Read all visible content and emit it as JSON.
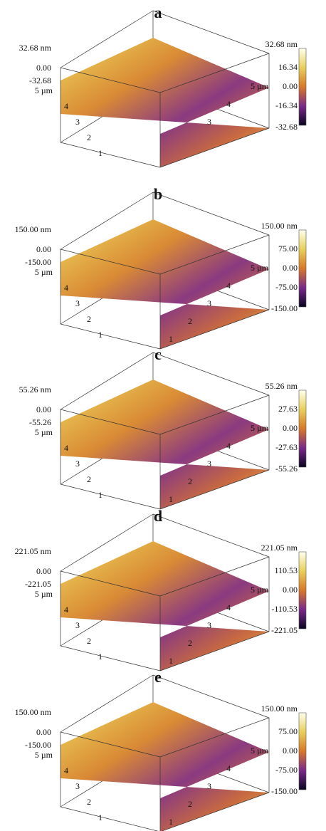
{
  "panels": [
    {
      "label": "a",
      "z_labels": [
        "32.68 nm",
        "0.00",
        "-32.68"
      ],
      "y_axis": [
        "5 µm",
        "4",
        "3",
        "2",
        "1"
      ],
      "x_axis": [
        "5 µm",
        "4",
        "3"
      ],
      "colorbar": [
        "32.68 nm",
        "16.34",
        "0.00",
        "-16.34",
        "-32.68"
      ]
    },
    {
      "label": "b",
      "z_labels": [
        "150.00 nm",
        "0.00",
        "-150.00"
      ],
      "y_axis": [
        "5 µm",
        "4",
        "3",
        "2",
        "1"
      ],
      "x_axis": [
        "5 µm",
        "4",
        "3",
        "2",
        "1"
      ],
      "colorbar": [
        "150.00 nm",
        "75.00",
        "0.00",
        "-75.00",
        "-150.00"
      ]
    },
    {
      "label": "c",
      "z_labels": [
        "55.26 nm",
        "0.00",
        "-55.26"
      ],
      "y_axis": [
        "5 µm",
        "4",
        "3",
        "2",
        "1"
      ],
      "x_axis": [
        "5 µm",
        "4",
        "3",
        "2",
        "1"
      ],
      "colorbar": [
        "55.26 nm",
        "27.63",
        "0.00",
        "-27.63",
        "-55.26"
      ]
    },
    {
      "label": "d",
      "z_labels": [
        "221.05 nm",
        "0.00",
        "-221.05"
      ],
      "y_axis": [
        "5 µm",
        "4",
        "3",
        "2",
        "1"
      ],
      "x_axis": [
        "5 µm",
        "4",
        "3",
        "2",
        "1"
      ],
      "colorbar": [
        "221.05 nm",
        "110.53",
        "0.00",
        "-110.53",
        "-221.05"
      ]
    },
    {
      "label": "e",
      "z_labels": [
        "150.00 nm",
        "0.00",
        "-150.00"
      ],
      "y_axis": [
        "5 µm",
        "4",
        "3",
        "2",
        "1"
      ],
      "x_axis": [
        "5 µm",
        "4",
        "3",
        "2",
        "1"
      ],
      "colorbar": [
        "150.00 nm",
        "75.00",
        "0.00",
        "-75.00",
        "-150.00"
      ]
    }
  ]
}
